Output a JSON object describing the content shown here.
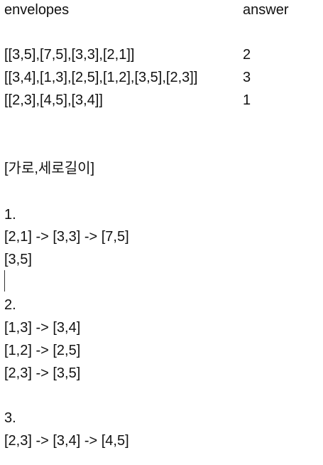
{
  "header": {
    "col1": "envelopes",
    "col2": "answer"
  },
  "cases": [
    {
      "envelopes": "[[3,5],[7,5],[3,3],[2,1]]",
      "answer": "2"
    },
    {
      "envelopes": "[[3,4],[1,3],[2,5],[1,2],[3,5],[2,3]]",
      "answer": "3"
    },
    {
      "envelopes": "[[2,3],[4,5],[3,4]]",
      "answer": "1"
    }
  ],
  "note_title": "[가로,세로길이]",
  "sections": [
    {
      "number": "1.",
      "lines": [
        "[2,1] -> [3,3] -> [7,5]",
        "[3,5]"
      ]
    },
    {
      "number": "2.",
      "lines": [
        "[1,3] -> [3,4]",
        "[1,2] -> [2,5]",
        "[2,3] -> [3,5]"
      ]
    },
    {
      "number": "3.",
      "lines": [
        "[2,3] -> [3,4] -> [4,5]"
      ]
    }
  ]
}
